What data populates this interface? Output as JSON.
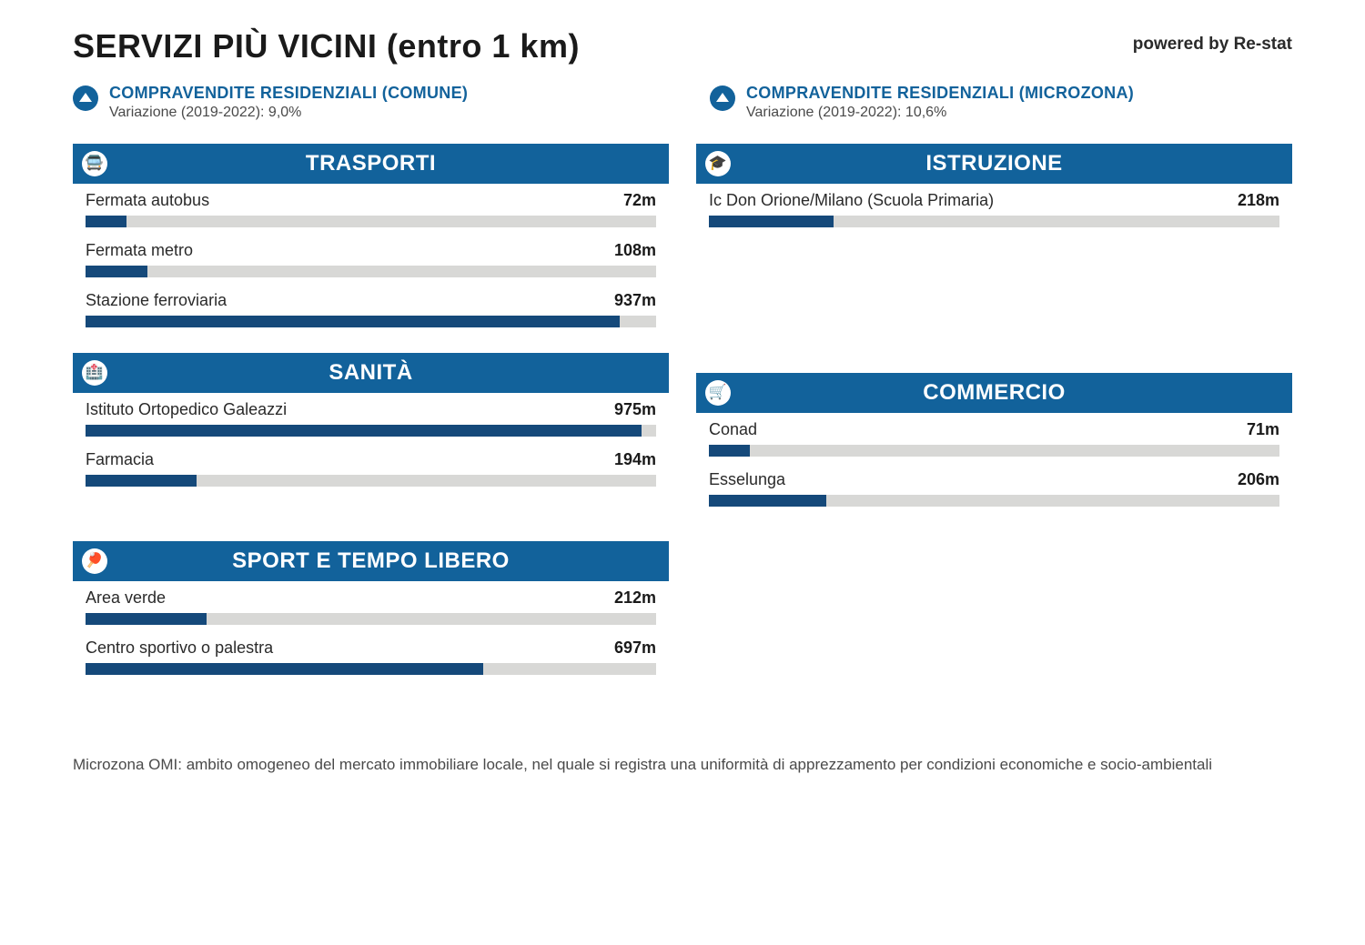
{
  "page_title": "SERVIZI PIÙ VICINI (entro 1 km)",
  "powered": "powered by Re-stat",
  "maxDistance": 1000,
  "colors": {
    "header_bg": "#12629b",
    "header_text": "#ffffff",
    "bar_track": "#d8d8d6",
    "bar_fill": "#15497a",
    "stat_title": "#12629b",
    "stat_sub": "#4a4a4a",
    "body_text": "#2a2a2a",
    "page_bg": "#ffffff"
  },
  "stats": {
    "comune": {
      "title": "COMPRAVENDITE RESIDENZIALI (COMUNE)",
      "subtitle": "Variazione (2019-2022): 9,0%"
    },
    "microzona": {
      "title": "COMPRAVENDITE RESIDENZIALI (MICROZONA)",
      "subtitle": "Variazione (2019-2022): 10,6%"
    }
  },
  "sections": {
    "trasporti": {
      "title": "TRASPORTI",
      "icon": "🚍",
      "items": [
        {
          "label": "Fermata autobus",
          "dist": "72m",
          "value": 72
        },
        {
          "label": "Fermata metro",
          "dist": "108m",
          "value": 108
        },
        {
          "label": "Stazione ferroviaria",
          "dist": "937m",
          "value": 937
        }
      ]
    },
    "sanita": {
      "title": "SANITÀ",
      "icon": "🏥",
      "items": [
        {
          "label": "Istituto Ortopedico Galeazzi",
          "dist": "975m",
          "value": 975
        },
        {
          "label": "Farmacia",
          "dist": "194m",
          "value": 194
        }
      ]
    },
    "sport": {
      "title": "SPORT E TEMPO LIBERO",
      "icon": "🏓",
      "items": [
        {
          "label": "Area verde",
          "dist": "212m",
          "value": 212
        },
        {
          "label": "Centro sportivo o palestra",
          "dist": "697m",
          "value": 697
        }
      ]
    },
    "istruzione": {
      "title": "ISTRUZIONE",
      "icon": "🎓",
      "items": [
        {
          "label": "Ic Don Orione/Milano (Scuola Primaria)",
          "dist": "218m",
          "value": 218
        }
      ]
    },
    "commercio": {
      "title": "COMMERCIO",
      "icon": "🛒",
      "items": [
        {
          "label": "Conad",
          "dist": "71m",
          "value": 71
        },
        {
          "label": "Esselunga",
          "dist": "206m",
          "value": 206
        }
      ]
    }
  },
  "footnote": "Microzona OMI: ambito omogeneo del mercato immobiliare locale, nel quale si registra una uniformità di apprezzamento per condizioni economiche e socio-ambientali"
}
